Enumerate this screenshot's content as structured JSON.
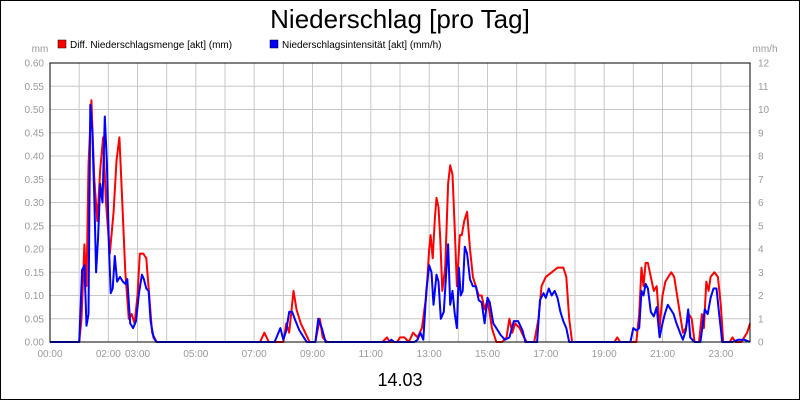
{
  "chart_data": {
    "type": "line",
    "title": "Niederschlag [pro Tag]",
    "date_label": "14.03",
    "left_unit": "mm",
    "right_unit": "mm/h",
    "ylim_left": [
      0,
      0.6
    ],
    "ylim_right": [
      0,
      12
    ],
    "xlim_hours": [
      0,
      24
    ],
    "grid": true,
    "legend_position": "top-left",
    "x_tick_labels": [
      "00:00",
      "02:00",
      "03:00",
      "05:00",
      "07:00",
      "09:00",
      "11:00",
      "13:00",
      "15:00",
      "17:00",
      "19:00",
      "21:00",
      "23:00"
    ],
    "x_tick_hours": [
      0,
      2,
      3,
      5,
      7,
      9,
      11,
      13,
      15,
      17,
      19,
      21,
      23
    ],
    "y_left_tick_labels": [
      "0.00",
      "0.05",
      "0.10",
      "0.15",
      "0.20",
      "0.25",
      "0.30",
      "0.35",
      "0.40",
      "0.45",
      "0.50",
      "0.55",
      "0.60"
    ],
    "y_right_tick_labels": [
      "0",
      "1",
      "2",
      "3",
      "4",
      "5",
      "6",
      "7",
      "8",
      "9",
      "10",
      "11",
      "12"
    ],
    "series": [
      {
        "name": "Diff. Niederschlagsmenge [akt] (mm)",
        "color": "#ff0000",
        "axis": "left",
        "points": [
          [
            0,
            0
          ],
          [
            1.0,
            0
          ],
          [
            1.08,
            0.05
          ],
          [
            1.18,
            0.21
          ],
          [
            1.25,
            0.12
          ],
          [
            1.32,
            0.38
          ],
          [
            1.42,
            0.52
          ],
          [
            1.52,
            0.35
          ],
          [
            1.62,
            0.26
          ],
          [
            1.72,
            0.37
          ],
          [
            1.82,
            0.44
          ],
          [
            1.92,
            0.3
          ],
          [
            2.05,
            0.19
          ],
          [
            2.18,
            0.28
          ],
          [
            2.28,
            0.39
          ],
          [
            2.38,
            0.44
          ],
          [
            2.48,
            0.3
          ],
          [
            2.58,
            0.15
          ],
          [
            2.7,
            0.05
          ],
          [
            2.8,
            0.06
          ],
          [
            2.9,
            0.04
          ],
          [
            3.0,
            0.1
          ],
          [
            3.08,
            0.19
          ],
          [
            3.2,
            0.19
          ],
          [
            3.3,
            0.18
          ],
          [
            3.4,
            0.1
          ],
          [
            3.5,
            0.02
          ],
          [
            3.65,
            0
          ],
          [
            7.2,
            0
          ],
          [
            7.35,
            0.02
          ],
          [
            7.5,
            0
          ],
          [
            8.0,
            0
          ],
          [
            8.1,
            0.04
          ],
          [
            8.2,
            0.02
          ],
          [
            8.35,
            0.11
          ],
          [
            8.45,
            0.07
          ],
          [
            8.6,
            0.04
          ],
          [
            8.75,
            0.02
          ],
          [
            8.9,
            0
          ],
          [
            9.1,
            0
          ],
          [
            9.25,
            0.05
          ],
          [
            9.35,
            0.01
          ],
          [
            9.5,
            0
          ],
          [
            11.4,
            0
          ],
          [
            11.55,
            0.01
          ],
          [
            11.65,
            0
          ],
          [
            11.9,
            0
          ],
          [
            12.0,
            0.01
          ],
          [
            12.15,
            0.01
          ],
          [
            12.3,
            0
          ],
          [
            12.45,
            0.02
          ],
          [
            12.6,
            0.01
          ],
          [
            12.75,
            0.03
          ],
          [
            12.9,
            0.1
          ],
          [
            13.0,
            0.2
          ],
          [
            13.05,
            0.23
          ],
          [
            13.12,
            0.18
          ],
          [
            13.2,
            0.27
          ],
          [
            13.25,
            0.31
          ],
          [
            13.32,
            0.29
          ],
          [
            13.38,
            0.22
          ],
          [
            13.45,
            0.11
          ],
          [
            13.55,
            0.16
          ],
          [
            13.65,
            0.34
          ],
          [
            13.72,
            0.38
          ],
          [
            13.8,
            0.36
          ],
          [
            13.88,
            0.24
          ],
          [
            13.95,
            0.12
          ],
          [
            14.05,
            0.23
          ],
          [
            14.12,
            0.23
          ],
          [
            14.2,
            0.26
          ],
          [
            14.3,
            0.28
          ],
          [
            14.4,
            0.2
          ],
          [
            14.5,
            0.14
          ],
          [
            14.6,
            0.12
          ],
          [
            14.7,
            0.1
          ],
          [
            14.8,
            0.1
          ],
          [
            14.9,
            0.07
          ],
          [
            15.0,
            0.09
          ],
          [
            15.08,
            0.06
          ],
          [
            15.15,
            0.03
          ],
          [
            15.3,
            0
          ],
          [
            15.5,
            0
          ],
          [
            15.65,
            0.01
          ],
          [
            15.75,
            0.05
          ],
          [
            15.85,
            0.02
          ],
          [
            15.95,
            0.04
          ],
          [
            16.1,
            0.03
          ],
          [
            16.25,
            0.01
          ],
          [
            16.35,
            0
          ],
          [
            16.6,
            0
          ],
          [
            16.75,
            0.05
          ],
          [
            16.85,
            0.12
          ],
          [
            17.0,
            0.14
          ],
          [
            17.2,
            0.15
          ],
          [
            17.4,
            0.16
          ],
          [
            17.6,
            0.16
          ],
          [
            17.7,
            0.14
          ],
          [
            17.8,
            0.05
          ],
          [
            17.9,
            0
          ],
          [
            19.35,
            0
          ],
          [
            19.45,
            0.01
          ],
          [
            19.55,
            0
          ],
          [
            20.1,
            0
          ],
          [
            20.2,
            0.06
          ],
          [
            20.28,
            0.16
          ],
          [
            20.35,
            0.12
          ],
          [
            20.42,
            0.17
          ],
          [
            20.5,
            0.17
          ],
          [
            20.6,
            0.14
          ],
          [
            20.7,
            0.11
          ],
          [
            20.8,
            0.12
          ],
          [
            20.9,
            0.03
          ],
          [
            21.0,
            0.1
          ],
          [
            21.1,
            0.13
          ],
          [
            21.2,
            0.14
          ],
          [
            21.3,
            0.15
          ],
          [
            21.4,
            0.14
          ],
          [
            21.5,
            0.1
          ],
          [
            21.6,
            0.06
          ],
          [
            21.7,
            0.02
          ],
          [
            21.8,
            0.03
          ],
          [
            21.9,
            0.06
          ],
          [
            22.0,
            0.05
          ],
          [
            22.1,
            0
          ],
          [
            22.25,
            0
          ],
          [
            22.35,
            0.06
          ],
          [
            22.42,
            0.03
          ],
          [
            22.5,
            0.13
          ],
          [
            22.58,
            0.11
          ],
          [
            22.65,
            0.14
          ],
          [
            22.78,
            0.15
          ],
          [
            22.9,
            0.14
          ],
          [
            23.0,
            0.08
          ],
          [
            23.08,
            0
          ],
          [
            23.3,
            0
          ],
          [
            23.4,
            0.01
          ],
          [
            23.5,
            0
          ],
          [
            23.7,
            0
          ],
          [
            23.8,
            0.01
          ],
          [
            23.9,
            0.02
          ],
          [
            24.0,
            0.04
          ]
        ]
      },
      {
        "name": "Niederschlagsintensität [akt] (mm/h)",
        "color": "#0000ff",
        "axis": "right",
        "points": [
          [
            0,
            0
          ],
          [
            1.0,
            0
          ],
          [
            1.1,
            3.1
          ],
          [
            1.18,
            3.3
          ],
          [
            1.25,
            0.7
          ],
          [
            1.32,
            1.2
          ],
          [
            1.38,
            10.2
          ],
          [
            1.45,
            9.1
          ],
          [
            1.52,
            6.2
          ],
          [
            1.58,
            3.0
          ],
          [
            1.65,
            4.5
          ],
          [
            1.72,
            6.8
          ],
          [
            1.8,
            6.0
          ],
          [
            1.88,
            9.7
          ],
          [
            1.95,
            7.7
          ],
          [
            2.02,
            4.2
          ],
          [
            2.08,
            2.1
          ],
          [
            2.15,
            2.3
          ],
          [
            2.22,
            3.7
          ],
          [
            2.3,
            2.6
          ],
          [
            2.4,
            2.8
          ],
          [
            2.5,
            2.6
          ],
          [
            2.58,
            2.5
          ],
          [
            2.65,
            2.7
          ],
          [
            2.75,
            0.8
          ],
          [
            2.85,
            0.6
          ],
          [
            2.95,
            0.9
          ],
          [
            3.05,
            2.1
          ],
          [
            3.15,
            2.9
          ],
          [
            3.22,
            2.7
          ],
          [
            3.3,
            2.3
          ],
          [
            3.38,
            2.2
          ],
          [
            3.45,
            0.9
          ],
          [
            3.55,
            0.2
          ],
          [
            3.65,
            0
          ],
          [
            7.7,
            0
          ],
          [
            7.8,
            0.3
          ],
          [
            7.9,
            0.6
          ],
          [
            8.0,
            0.1
          ],
          [
            8.1,
            0.5
          ],
          [
            8.2,
            1.3
          ],
          [
            8.3,
            1.3
          ],
          [
            8.42,
            0.9
          ],
          [
            8.55,
            0.5
          ],
          [
            8.7,
            0.2
          ],
          [
            8.8,
            0
          ],
          [
            9.1,
            0
          ],
          [
            9.2,
            1.0
          ],
          [
            9.32,
            0.6
          ],
          [
            9.45,
            0
          ],
          [
            11.6,
            0
          ],
          [
            11.7,
            0.1
          ],
          [
            11.8,
            0
          ],
          [
            12.5,
            0
          ],
          [
            12.6,
            0.1
          ],
          [
            12.7,
            0.4
          ],
          [
            12.8,
            0.1
          ],
          [
            12.9,
            2.2
          ],
          [
            13.0,
            3.3
          ],
          [
            13.08,
            3.0
          ],
          [
            13.15,
            1.6
          ],
          [
            13.25,
            2.9
          ],
          [
            13.32,
            2.6
          ],
          [
            13.4,
            1.0
          ],
          [
            13.5,
            1.3
          ],
          [
            13.6,
            3.3
          ],
          [
            13.65,
            4.2
          ],
          [
            13.72,
            1.6
          ],
          [
            13.8,
            2.2
          ],
          [
            13.88,
            1.2
          ],
          [
            13.95,
            0.6
          ],
          [
            14.02,
            3.2
          ],
          [
            14.08,
            2.0
          ],
          [
            14.15,
            2.2
          ],
          [
            14.22,
            4.1
          ],
          [
            14.3,
            3.8
          ],
          [
            14.4,
            2.7
          ],
          [
            14.5,
            2.4
          ],
          [
            14.6,
            2.4
          ],
          [
            14.7,
            1.8
          ],
          [
            14.8,
            1.7
          ],
          [
            14.9,
            0.8
          ],
          [
            15.0,
            1.9
          ],
          [
            15.08,
            1.7
          ],
          [
            15.2,
            0.8
          ],
          [
            15.3,
            0.6
          ],
          [
            15.45,
            0.3
          ],
          [
            15.6,
            0.1
          ],
          [
            15.75,
            0.2
          ],
          [
            15.9,
            0.9
          ],
          [
            16.05,
            0.9
          ],
          [
            16.2,
            0.5
          ],
          [
            16.3,
            0
          ],
          [
            16.7,
            0
          ],
          [
            16.8,
            1.8
          ],
          [
            16.92,
            2.1
          ],
          [
            17.0,
            1.9
          ],
          [
            17.1,
            2.3
          ],
          [
            17.2,
            2.0
          ],
          [
            17.3,
            2.2
          ],
          [
            17.4,
            1.9
          ],
          [
            17.5,
            1.3
          ],
          [
            17.6,
            0.9
          ],
          [
            17.7,
            0.6
          ],
          [
            17.8,
            0
          ],
          [
            19.9,
            0
          ],
          [
            20.0,
            0.6
          ],
          [
            20.1,
            0.5
          ],
          [
            20.2,
            0.6
          ],
          [
            20.28,
            2.2
          ],
          [
            20.35,
            2.0
          ],
          [
            20.42,
            2.5
          ],
          [
            20.5,
            2.3
          ],
          [
            20.6,
            1.3
          ],
          [
            20.7,
            1.1
          ],
          [
            20.8,
            1.5
          ],
          [
            20.9,
            0.2
          ],
          [
            21.0,
            0.8
          ],
          [
            21.08,
            1.2
          ],
          [
            21.18,
            1.6
          ],
          [
            21.28,
            1.4
          ],
          [
            21.38,
            1.2
          ],
          [
            21.48,
            0.8
          ],
          [
            21.6,
            0.4
          ],
          [
            21.7,
            0.1
          ],
          [
            21.8,
            0.5
          ],
          [
            21.88,
            1.4
          ],
          [
            21.95,
            0.2
          ],
          [
            22.1,
            0
          ],
          [
            22.3,
            0
          ],
          [
            22.45,
            1.4
          ],
          [
            22.55,
            1.2
          ],
          [
            22.65,
            1.9
          ],
          [
            22.75,
            2.3
          ],
          [
            22.85,
            2.3
          ],
          [
            22.95,
            1.1
          ],
          [
            23.05,
            0
          ],
          [
            23.4,
            0
          ],
          [
            23.6,
            0.1
          ],
          [
            23.8,
            0.1
          ],
          [
            24.0,
            0
          ]
        ]
      }
    ]
  }
}
